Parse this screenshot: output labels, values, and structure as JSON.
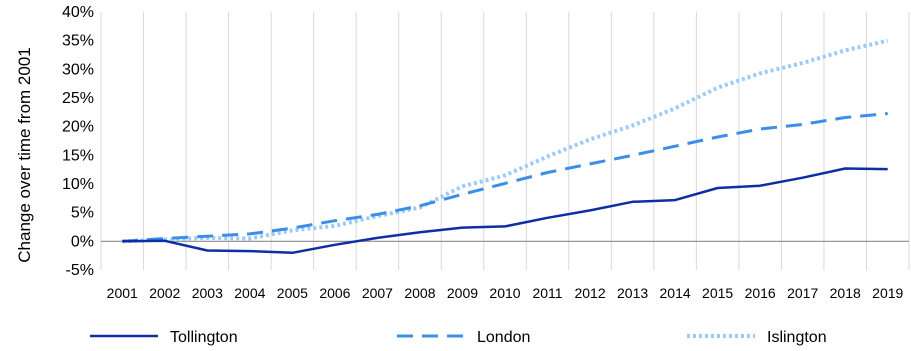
{
  "chart_data": {
    "type": "line",
    "ylabel": "Change over  time from 2001",
    "categories": [
      "2001",
      "2002",
      "2003",
      "2004",
      "2005",
      "2006",
      "2007",
      "2008",
      "2009",
      "2010",
      "2011",
      "2012",
      "2013",
      "2014",
      "2015",
      "2016",
      "2017",
      "2018",
      "2019"
    ],
    "ylim": [
      -5,
      40
    ],
    "yticks": [
      -5,
      0,
      5,
      10,
      15,
      20,
      25,
      30,
      35,
      40
    ],
    "ytick_labels": [
      "-5%",
      "0%",
      "5%",
      "10%",
      "15%",
      "20%",
      "25%",
      "30%",
      "35%",
      "40%"
    ],
    "grid": "vertical",
    "legend_position": "bottom",
    "series": [
      {
        "name": "Tollington",
        "color": "#0d2fa3",
        "style": "solid",
        "values": [
          0.0,
          0.1,
          -1.6,
          -1.7,
          -2.0,
          -0.6,
          0.6,
          1.6,
          2.4,
          2.6,
          4.1,
          5.4,
          6.9,
          7.2,
          9.3,
          9.7,
          11.1,
          12.7,
          12.6
        ]
      },
      {
        "name": "London",
        "color": "#3d8ee8",
        "style": "dashed",
        "values": [
          0.0,
          0.5,
          0.9,
          1.3,
          2.3,
          3.6,
          4.7,
          6.2,
          8.2,
          10.1,
          12.0,
          13.5,
          15.0,
          16.6,
          18.2,
          19.6,
          20.4,
          21.6,
          22.3
        ]
      },
      {
        "name": "Islington",
        "color": "#9dcbf7",
        "style": "dotted",
        "values": [
          0.0,
          0.3,
          0.6,
          0.5,
          1.9,
          2.7,
          4.4,
          5.9,
          9.6,
          11.5,
          14.8,
          17.8,
          20.2,
          23.2,
          26.8,
          29.3,
          31.1,
          33.3,
          35.0
        ]
      }
    ]
  }
}
